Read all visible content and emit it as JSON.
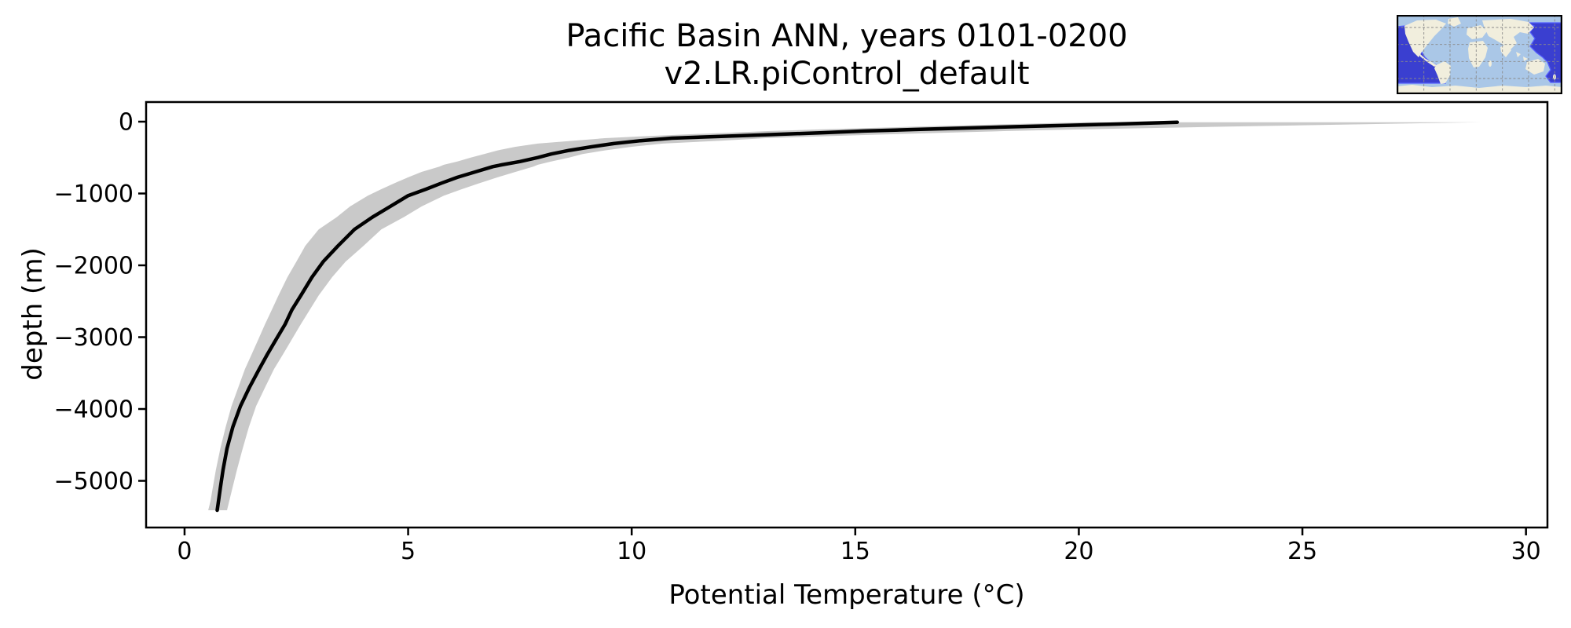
{
  "chart_data": {
    "type": "line",
    "title": "Pacific Basin ANN, years 0101-0200",
    "subtitle": "v2.LR.piControl_default",
    "xlabel": "Potential Temperature (°C)",
    "ylabel": "depth (m)",
    "xlim": [
      -0.86,
      30.48
    ],
    "ylim": [
      -5650,
      273
    ],
    "x_ticks": [
      0,
      5,
      10,
      15,
      20,
      25,
      30
    ],
    "x_tick_labels": [
      "0",
      "5",
      "10",
      "15",
      "20",
      "25",
      "30"
    ],
    "y_ticks": [
      0,
      -1000,
      -2000,
      -3000,
      -4000,
      -5000
    ],
    "y_tick_labels": [
      "0",
      "−1000",
      "−2000",
      "−3000",
      "−4000",
      "−5000"
    ],
    "grid": false,
    "legend": "none",
    "series": [
      {
        "name": "mean-potential-temperature-profile",
        "kind": "line",
        "color": "#000000",
        "points_T_depth": [
          [
            22.2,
            -8
          ],
          [
            21.6,
            -20
          ],
          [
            20.7,
            -35
          ],
          [
            19.8,
            -50
          ],
          [
            18.6,
            -70
          ],
          [
            17.4,
            -90
          ],
          [
            16.3,
            -110
          ],
          [
            15.2,
            -130
          ],
          [
            14.2,
            -155
          ],
          [
            13.1,
            -180
          ],
          [
            12.0,
            -205
          ],
          [
            10.9,
            -230
          ],
          [
            10.2,
            -265
          ],
          [
            9.6,
            -305
          ],
          [
            9.1,
            -350
          ],
          [
            8.6,
            -400
          ],
          [
            8.2,
            -450
          ],
          [
            7.9,
            -500
          ],
          [
            7.5,
            -555
          ],
          [
            7.1,
            -600
          ],
          [
            6.9,
            -625
          ],
          [
            6.5,
            -700
          ],
          [
            6.1,
            -775
          ],
          [
            5.75,
            -855
          ],
          [
            5.4,
            -940
          ],
          [
            5.0,
            -1030
          ],
          [
            4.6,
            -1180
          ],
          [
            4.2,
            -1330
          ],
          [
            3.8,
            -1500
          ],
          [
            3.43,
            -1730
          ],
          [
            3.1,
            -1950
          ],
          [
            2.85,
            -2165
          ],
          [
            2.6,
            -2420
          ],
          [
            2.4,
            -2620
          ],
          [
            2.25,
            -2820
          ],
          [
            2.05,
            -3030
          ],
          [
            1.85,
            -3240
          ],
          [
            1.67,
            -3445
          ],
          [
            1.45,
            -3700
          ],
          [
            1.25,
            -3960
          ],
          [
            1.08,
            -4250
          ],
          [
            0.95,
            -4550
          ],
          [
            0.86,
            -4850
          ],
          [
            0.8,
            -5100
          ],
          [
            0.76,
            -5280
          ],
          [
            0.73,
            -5410
          ]
        ]
      },
      {
        "name": "spread-band",
        "kind": "band",
        "color": "#c9c9c9",
        "rows_depth_Tlow_Thigh": [
          [
            -8,
            20.2,
            29.0
          ],
          [
            -20,
            19.4,
            27.9
          ],
          [
            -35,
            18.4,
            26.4
          ],
          [
            -50,
            17.5,
            25.0
          ],
          [
            -70,
            16.3,
            23.2
          ],
          [
            -90,
            15.2,
            21.5
          ],
          [
            -110,
            14.1,
            19.9
          ],
          [
            -130,
            13.1,
            18.4
          ],
          [
            -155,
            12.1,
            16.9
          ],
          [
            -180,
            11.1,
            15.5
          ],
          [
            -205,
            10.2,
            14.2
          ],
          [
            -230,
            9.4,
            13.0
          ],
          [
            -265,
            8.7,
            12.0
          ],
          [
            -305,
            7.9,
            10.7
          ],
          [
            -350,
            7.4,
            10.0
          ],
          [
            -400,
            7.0,
            9.4
          ],
          [
            -450,
            6.7,
            8.9
          ],
          [
            -500,
            6.4,
            8.6
          ],
          [
            -555,
            6.1,
            8.2
          ],
          [
            -600,
            5.8,
            7.9
          ],
          [
            -625,
            5.7,
            7.8
          ],
          [
            -700,
            5.3,
            7.4
          ],
          [
            -775,
            5.0,
            7.0
          ],
          [
            -855,
            4.7,
            6.6
          ],
          [
            -940,
            4.4,
            6.2
          ],
          [
            -1030,
            4.1,
            5.8
          ],
          [
            -1180,
            3.7,
            5.3
          ],
          [
            -1330,
            3.4,
            4.9
          ],
          [
            -1500,
            3.0,
            4.4
          ],
          [
            -1730,
            2.7,
            4.0
          ],
          [
            -1950,
            2.5,
            3.6
          ],
          [
            -2165,
            2.3,
            3.3
          ],
          [
            -2420,
            2.1,
            3.0
          ],
          [
            -2620,
            1.95,
            2.8
          ],
          [
            -2820,
            1.8,
            2.6
          ],
          [
            -3030,
            1.65,
            2.4
          ],
          [
            -3240,
            1.5,
            2.2
          ],
          [
            -3445,
            1.35,
            2.0
          ],
          [
            -3700,
            1.2,
            1.8
          ],
          [
            -3960,
            1.05,
            1.6
          ],
          [
            -4250,
            0.92,
            1.44
          ],
          [
            -4550,
            0.8,
            1.3
          ],
          [
            -4850,
            0.7,
            1.17
          ],
          [
            -5100,
            0.63,
            1.07
          ],
          [
            -5280,
            0.58,
            1.0
          ],
          [
            -5410,
            0.53,
            0.95
          ]
        ]
      }
    ],
    "inset_map": {
      "name": "pacific-basin-region-map",
      "ocean_color": "#aac7e7",
      "land_color": "#f1eedd",
      "highlight_color": "#3a3fd0",
      "highlight_edge_color": "#5560ff",
      "gridline_color": "#8a8a8a",
      "border_color": "#000000"
    },
    "colors": {
      "line": "#000000",
      "band": "#c9c9c9",
      "text": "#000000",
      "background": "#ffffff"
    }
  }
}
